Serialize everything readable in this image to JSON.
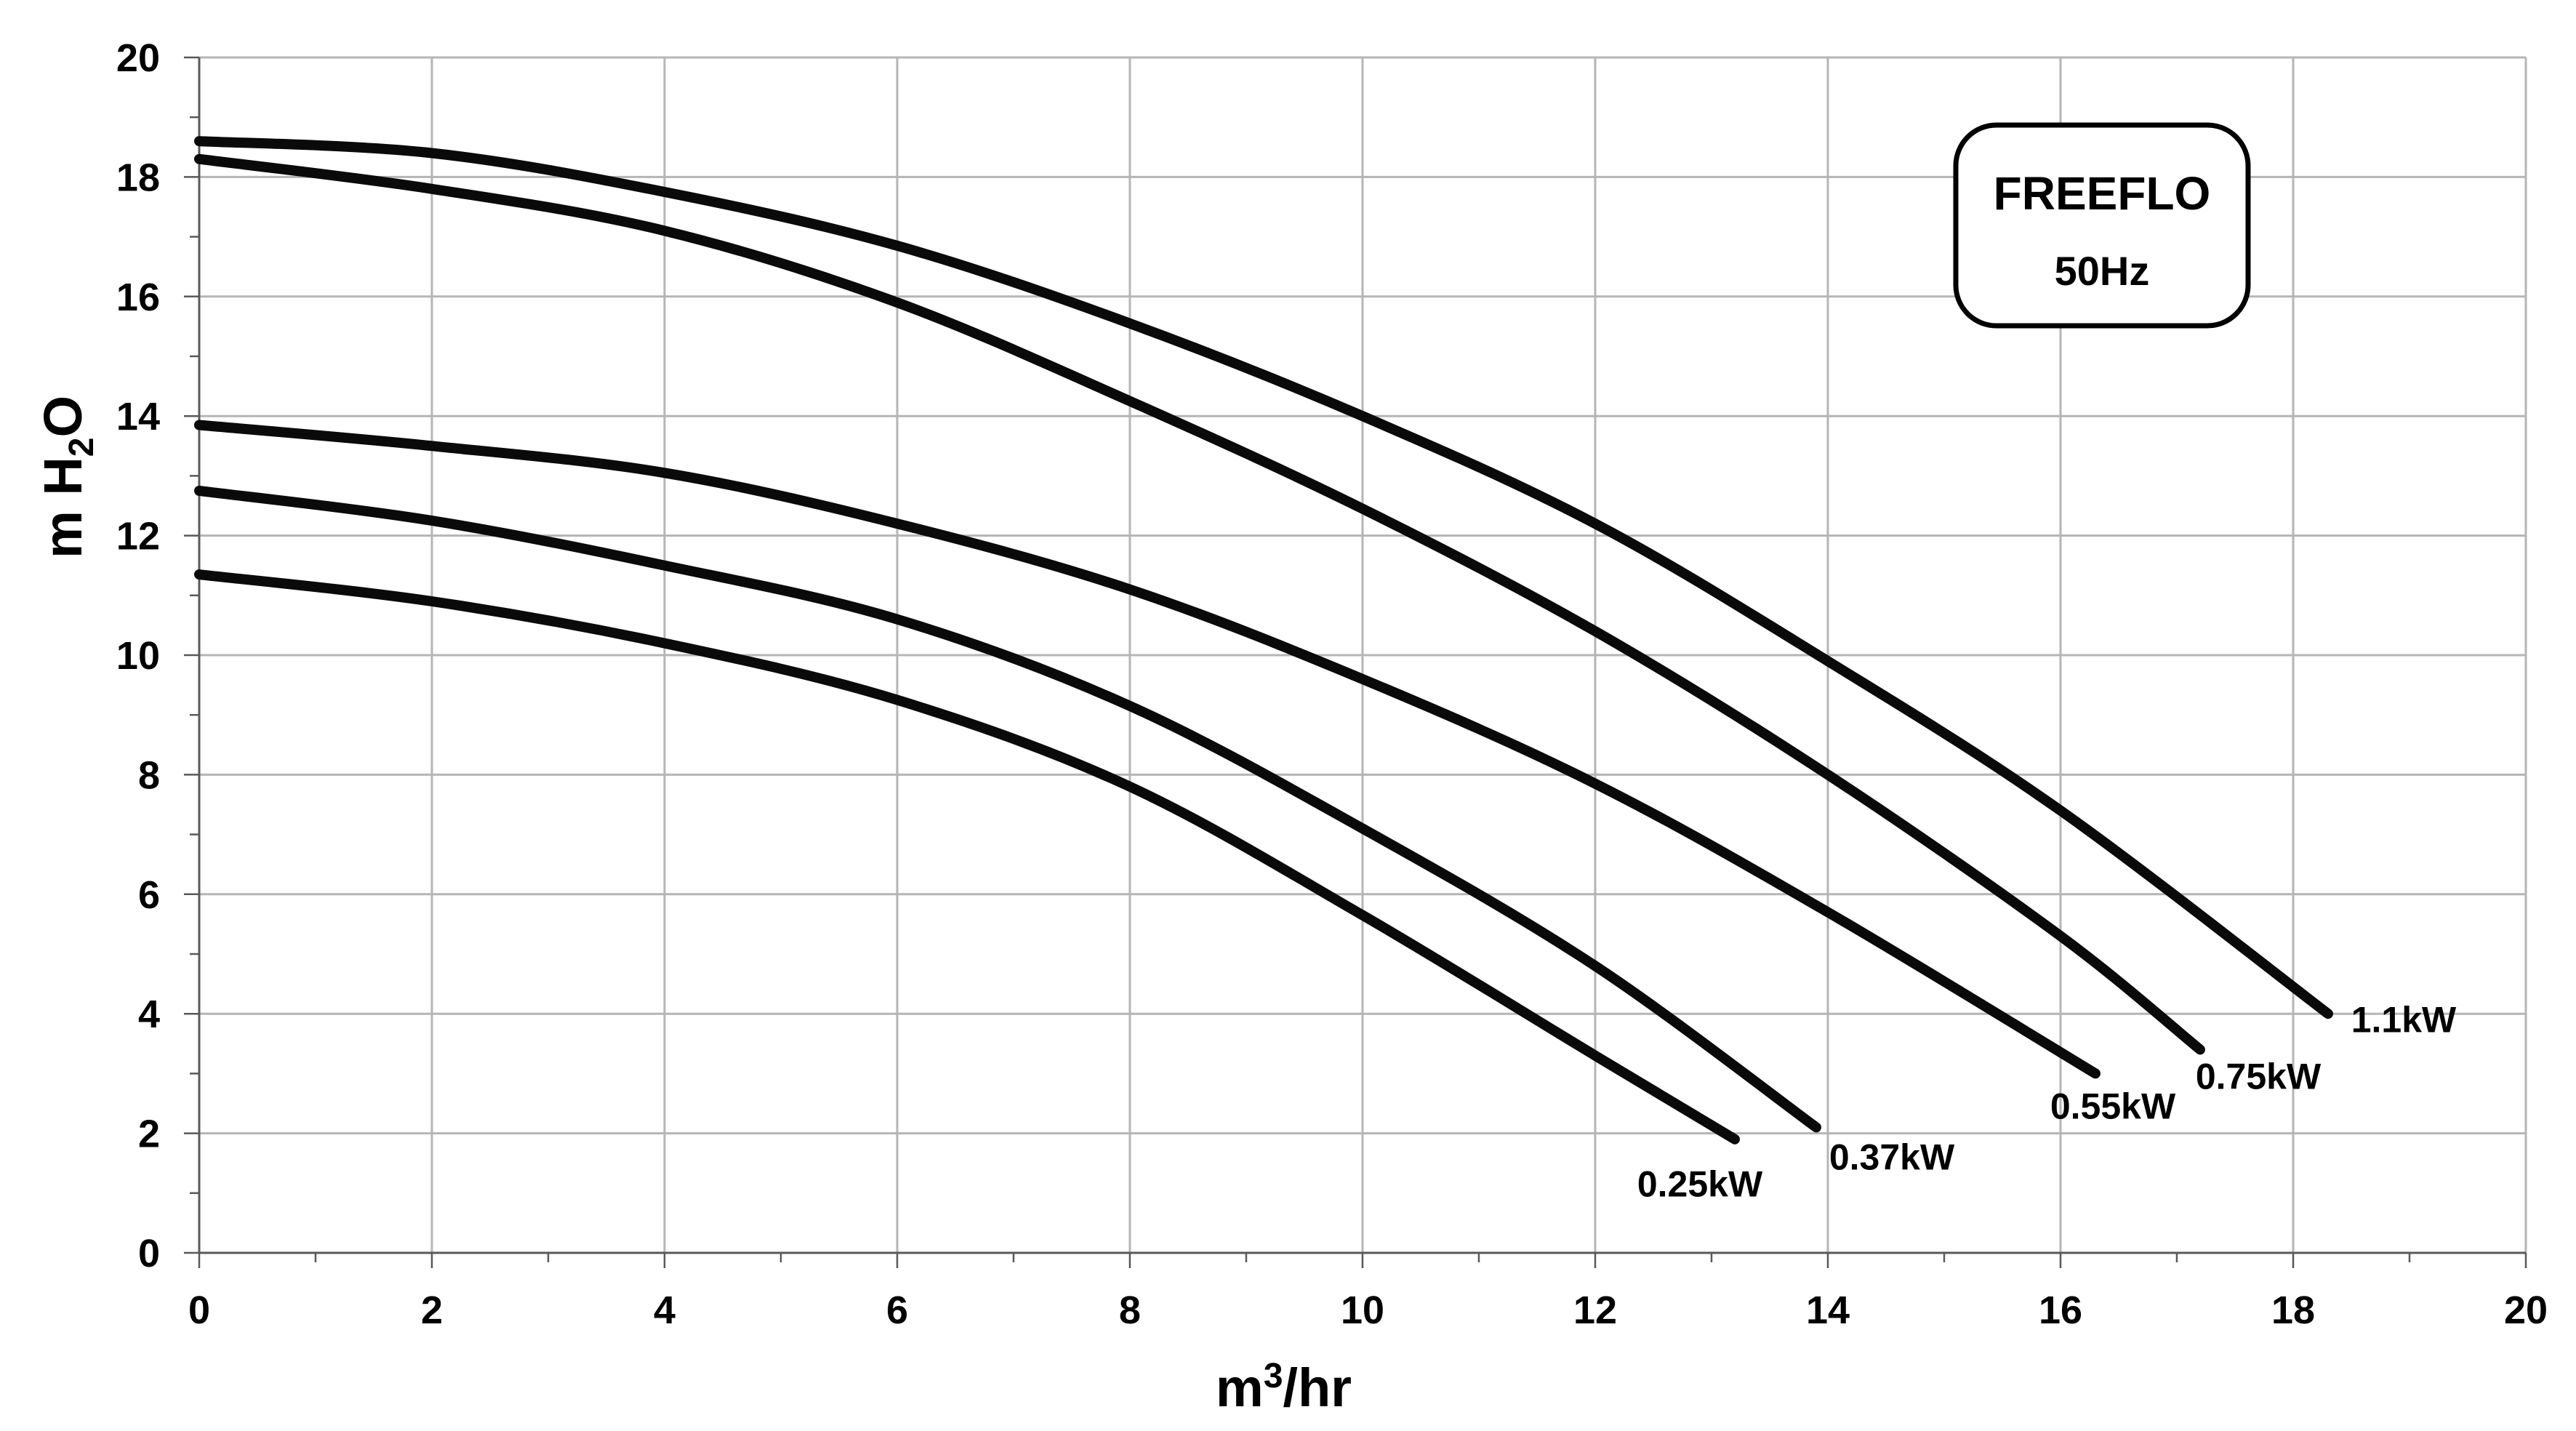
{
  "chart_data": {
    "type": "line",
    "title_box": {
      "line1": "FREEFLO",
      "line2": "50Hz"
    },
    "xlabel": "m3/hr",
    "xlabel_parts": {
      "base": "m",
      "sup": "3",
      "rest": "/hr"
    },
    "ylabel": "m H2O",
    "ylabel_parts": {
      "base": "m H",
      "sub": "2",
      "rest": "O"
    },
    "xlim": [
      0,
      20
    ],
    "ylim": [
      0,
      20
    ],
    "x_major_tick_step": 2,
    "x_minor_tick_step": 1,
    "y_major_tick_step": 2,
    "y_minor_tick_step": 1,
    "x_tick_labels": [
      "0",
      "2",
      "4",
      "6",
      "8",
      "10",
      "12",
      "14",
      "16",
      "18",
      "20"
    ],
    "y_tick_labels": [
      "0",
      "2",
      "4",
      "6",
      "8",
      "10",
      "12",
      "14",
      "16",
      "18",
      "20"
    ],
    "grid": "major gridlines every 2 units, both axes",
    "legend_position": "top-right inside plot",
    "series": [
      {
        "name": "0.25kW",
        "label_pos": {
          "x": 12.9,
          "y": 1.15
        },
        "points": [
          [
            0,
            11.35
          ],
          [
            2,
            10.9
          ],
          [
            4,
            10.2
          ],
          [
            6,
            9.25
          ],
          [
            8,
            7.8
          ],
          [
            10,
            5.65
          ],
          [
            12,
            3.3
          ],
          [
            13.2,
            1.9
          ]
        ]
      },
      {
        "name": "0.37kW",
        "label_pos": {
          "x": 14.55,
          "y": 1.6
        },
        "points": [
          [
            0,
            12.75
          ],
          [
            2,
            12.25
          ],
          [
            4,
            11.5
          ],
          [
            6,
            10.6
          ],
          [
            8,
            9.15
          ],
          [
            10,
            7.1
          ],
          [
            12,
            4.8
          ],
          [
            13.9,
            2.1
          ]
        ]
      },
      {
        "name": "0.55kW",
        "label_pos": {
          "x": 16.45,
          "y": 2.45
        },
        "points": [
          [
            0,
            13.85
          ],
          [
            2,
            13.5
          ],
          [
            4,
            13.05
          ],
          [
            6,
            12.2
          ],
          [
            8,
            11.1
          ],
          [
            10,
            9.6
          ],
          [
            12,
            7.85
          ],
          [
            14,
            5.7
          ],
          [
            16.3,
            3.0
          ]
        ]
      },
      {
        "name": "0.75kW",
        "label_pos": {
          "x": 17.7,
          "y": 2.95
        },
        "points": [
          [
            0,
            18.3
          ],
          [
            2,
            17.8
          ],
          [
            4,
            17.1
          ],
          [
            6,
            15.9
          ],
          [
            8,
            14.25
          ],
          [
            10,
            12.45
          ],
          [
            12,
            10.4
          ],
          [
            14,
            8.0
          ],
          [
            16,
            5.3
          ],
          [
            17.2,
            3.4
          ]
        ]
      },
      {
        "name": "1.1kW",
        "label_pos": {
          "x": 18.95,
          "y": 3.9
        },
        "points": [
          [
            0,
            18.6
          ],
          [
            2,
            18.4
          ],
          [
            4,
            17.75
          ],
          [
            6,
            16.85
          ],
          [
            8,
            15.55
          ],
          [
            10,
            14.0
          ],
          [
            12,
            12.2
          ],
          [
            14,
            9.9
          ],
          [
            16,
            7.4
          ],
          [
            18.3,
            4.0
          ]
        ]
      }
    ]
  },
  "styles": {
    "background": "#ffffff",
    "curve_color": "#0a0a0a",
    "grid_color": "#b5b5b5",
    "axis_color": "#595959",
    "tick_color": "#595959",
    "text_color": "#000000",
    "legend_fill": "#ffffff",
    "legend_border_color": "#000000"
  }
}
